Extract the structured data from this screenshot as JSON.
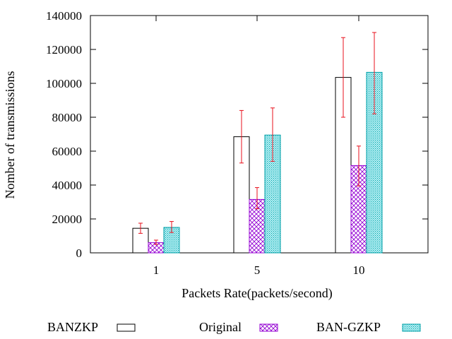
{
  "chart_data": {
    "type": "bar",
    "title": "",
    "xlabel": "Packets Rate(packets/second)",
    "ylabel": "Nomber of transmissions",
    "categories": [
      "1",
      "5",
      "10"
    ],
    "ylim": [
      0,
      140000
    ],
    "yticks": [
      0,
      20000,
      40000,
      60000,
      80000,
      100000,
      120000,
      140000
    ],
    "grid": false,
    "legend_position": "bottom",
    "series": [
      {
        "name": "BANZKP",
        "pattern": "empty",
        "color": "#000000",
        "values": [
          14500,
          68500,
          103500
        ],
        "error_low": [
          11500,
          53000,
          80000
        ],
        "error_high": [
          17500,
          84000,
          127000
        ]
      },
      {
        "name": "Original",
        "pattern": "crosshatch",
        "color": "#9400d3",
        "values": [
          6000,
          31500,
          51500
        ],
        "error_low": [
          5000,
          26000,
          39500
        ],
        "error_high": [
          7500,
          38500,
          63000
        ]
      },
      {
        "name": "BAN-GZKP",
        "pattern": "dots",
        "color": "#00a0a8",
        "values": [
          15000,
          69500,
          106500
        ],
        "error_low": [
          12000,
          54000,
          82000
        ],
        "error_high": [
          18500,
          85500,
          130000
        ]
      }
    ],
    "error_bar_color": "#e8101c"
  }
}
